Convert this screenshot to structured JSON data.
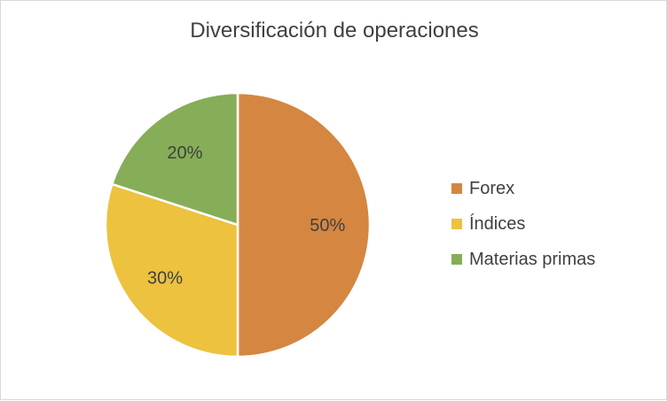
{
  "chart_data": {
    "type": "pie",
    "title": "Diversificación de operaciones",
    "categories": [
      "Forex",
      "Índices",
      "Materias primas"
    ],
    "values": [
      50,
      30,
      20
    ],
    "data_labels": [
      "50%",
      "30%",
      "20%"
    ],
    "colors": [
      "#d58641",
      "#ecc23f",
      "#86ad58"
    ],
    "legend_position": "right",
    "start_angle": "12 o'clock",
    "direction": "clockwise"
  }
}
